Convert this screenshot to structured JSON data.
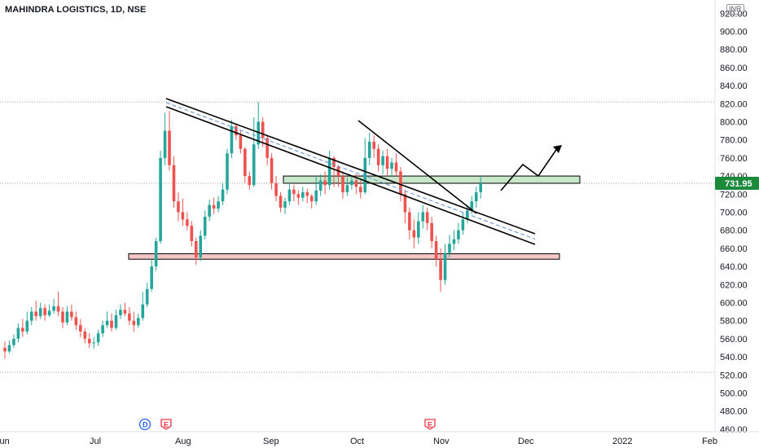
{
  "header": {
    "title": "MAHINDRA LOGISTICS, 1D, NSE",
    "currency": "INR"
  },
  "colors": {
    "up": "#26a69a",
    "down": "#ef5350",
    "last_bg": "#1b8a3a",
    "support_zone": "#f5c6c6",
    "resistance_zone": "#c8e6c9",
    "trend": "#000000",
    "dashed_mid": "#5b8dd6",
    "dividend_icon": "#2962ff",
    "earnings_icon": "#f23645"
  },
  "chart_data": {
    "type": "candlestick",
    "title": "MAHINDRA LOGISTICS, 1D, NSE",
    "ylim": [
      460,
      930
    ],
    "x_tick_labels": [
      "Jun",
      "Jul",
      "Aug",
      "Sep",
      "Oct",
      "Nov",
      "Dec",
      "2022",
      "Feb"
    ],
    "y_tick_labels": [
      "920.00",
      "900.00",
      "880.00",
      "860.00",
      "840.00",
      "820.00",
      "800.00",
      "780.00",
      "760.00",
      "740.00",
      "720.00",
      "700.00",
      "680.00",
      "660.00",
      "640.00",
      "620.00",
      "600.00",
      "580.00",
      "560.00",
      "540.00",
      "520.00",
      "500.00",
      "480.00",
      "460.00"
    ],
    "y_ticks": [
      920,
      900,
      880,
      860,
      840,
      820,
      800,
      780,
      760,
      740,
      720,
      700,
      680,
      660,
      640,
      620,
      600,
      580,
      560,
      540,
      520,
      500,
      480,
      460
    ],
    "last_price": "731.95",
    "last_value": 731.95,
    "candles": [
      [
        550,
        546,
        557,
        538
      ],
      [
        546,
        553,
        558,
        544
      ],
      [
        553,
        560,
        565,
        550
      ],
      [
        560,
        572,
        577,
        556
      ],
      [
        572,
        568,
        582,
        562
      ],
      [
        568,
        580,
        590,
        565
      ],
      [
        580,
        590,
        595,
        575
      ],
      [
        590,
        585,
        602,
        580
      ],
      [
        585,
        594,
        600,
        582
      ],
      [
        594,
        586,
        598,
        580
      ],
      [
        586,
        591,
        598,
        584
      ],
      [
        591,
        596,
        604,
        588
      ],
      [
        596,
        590,
        612,
        585
      ],
      [
        590,
        578,
        595,
        572
      ],
      [
        578,
        590,
        596,
        575
      ],
      [
        590,
        584,
        598,
        580
      ],
      [
        584,
        575,
        590,
        570
      ],
      [
        575,
        568,
        582,
        562
      ],
      [
        568,
        560,
        572,
        555
      ],
      [
        560,
        555,
        566,
        550
      ],
      [
        555,
        556,
        562,
        549
      ],
      [
        556,
        566,
        570,
        552
      ],
      [
        566,
        575,
        580,
        562
      ],
      [
        575,
        580,
        590,
        572
      ],
      [
        580,
        572,
        588,
        568
      ],
      [
        572,
        586,
        592,
        570
      ],
      [
        586,
        592,
        598,
        582
      ],
      [
        592,
        588,
        600,
        585
      ],
      [
        588,
        580,
        595,
        575
      ],
      [
        580,
        575,
        590,
        568
      ],
      [
        575,
        583,
        588,
        572
      ],
      [
        583,
        598,
        612,
        580
      ],
      [
        598,
        615,
        622,
        595
      ],
      [
        615,
        640,
        648,
        612
      ],
      [
        640,
        668,
        672,
        635
      ],
      [
        668,
        760,
        768,
        665
      ],
      [
        760,
        790,
        810,
        752
      ],
      [
        790,
        752,
        812,
        746
      ],
      [
        752,
        712,
        762,
        705
      ],
      [
        712,
        700,
        722,
        690
      ],
      [
        700,
        692,
        715,
        685
      ],
      [
        692,
        685,
        700,
        680
      ],
      [
        685,
        668,
        690,
        662
      ],
      [
        668,
        650,
        672,
        642
      ],
      [
        650,
        674,
        680,
        646
      ],
      [
        674,
        695,
        702,
        670
      ],
      [
        695,
        708,
        714,
        690
      ],
      [
        708,
        704,
        716,
        698
      ],
      [
        704,
        712,
        718,
        700
      ],
      [
        712,
        725,
        732,
        708
      ],
      [
        725,
        765,
        770,
        720
      ],
      [
        765,
        795,
        802,
        760
      ],
      [
        795,
        785,
        798,
        780
      ],
      [
        785,
        770,
        790,
        765
      ],
      [
        770,
        740,
        772,
        732
      ],
      [
        740,
        730,
        745,
        725
      ],
      [
        730,
        775,
        805,
        728
      ],
      [
        775,
        800,
        822,
        770
      ],
      [
        800,
        782,
        805,
        772
      ],
      [
        782,
        760,
        785,
        752
      ],
      [
        760,
        732,
        765,
        725
      ],
      [
        732,
        718,
        740,
        712
      ],
      [
        718,
        705,
        722,
        700
      ],
      [
        705,
        712,
        716,
        698
      ],
      [
        712,
        725,
        732,
        708
      ],
      [
        725,
        720,
        730,
        712
      ],
      [
        720,
        716,
        724,
        708
      ],
      [
        716,
        722,
        728,
        712
      ],
      [
        722,
        718,
        726,
        710
      ],
      [
        718,
        712,
        720,
        704
      ],
      [
        712,
        724,
        740,
        708
      ],
      [
        724,
        735,
        742,
        718
      ],
      [
        735,
        730,
        745,
        720
      ],
      [
        730,
        760,
        768,
        725
      ],
      [
        760,
        750,
        762,
        728
      ],
      [
        750,
        740,
        752,
        728
      ],
      [
        740,
        722,
        745,
        715
      ],
      [
        722,
        730,
        738,
        718
      ],
      [
        730,
        735,
        740,
        725
      ],
      [
        735,
        728,
        742,
        720
      ],
      [
        728,
        722,
        735,
        715
      ],
      [
        722,
        760,
        782,
        720
      ],
      [
        760,
        778,
        788,
        752
      ],
      [
        778,
        770,
        785,
        760
      ],
      [
        770,
        752,
        775,
        745
      ],
      [
        752,
        762,
        768,
        742
      ],
      [
        762,
        748,
        770,
        740
      ],
      [
        748,
        755,
        760,
        740
      ],
      [
        755,
        745,
        765,
        740
      ],
      [
        745,
        720,
        750,
        712
      ],
      [
        720,
        700,
        725,
        688
      ],
      [
        700,
        680,
        705,
        670
      ],
      [
        680,
        672,
        692,
        660
      ],
      [
        672,
        690,
        700,
        665
      ],
      [
        690,
        700,
        708,
        682
      ],
      [
        700,
        688,
        705,
        680
      ],
      [
        688,
        668,
        695,
        660
      ],
      [
        668,
        648,
        674,
        640
      ],
      [
        648,
        625,
        660,
        612
      ],
      [
        625,
        655,
        665,
        620
      ],
      [
        655,
        665,
        675,
        650
      ],
      [
        665,
        670,
        680,
        658
      ],
      [
        670,
        680,
        688,
        665
      ],
      [
        680,
        692,
        700,
        675
      ],
      [
        692,
        702,
        708,
        688
      ],
      [
        702,
        712,
        718,
        698
      ],
      [
        712,
        722,
        728,
        705
      ],
      [
        722,
        731.95,
        740,
        715
      ]
    ],
    "annotations": {
      "resistance_zone": [
        732,
        740
      ],
      "support_zone": [
        648,
        654
      ],
      "resistance_level": 732,
      "lower_level": 523,
      "upper_level": 822
    },
    "event_markers": [
      "D",
      "E",
      "E"
    ]
  }
}
